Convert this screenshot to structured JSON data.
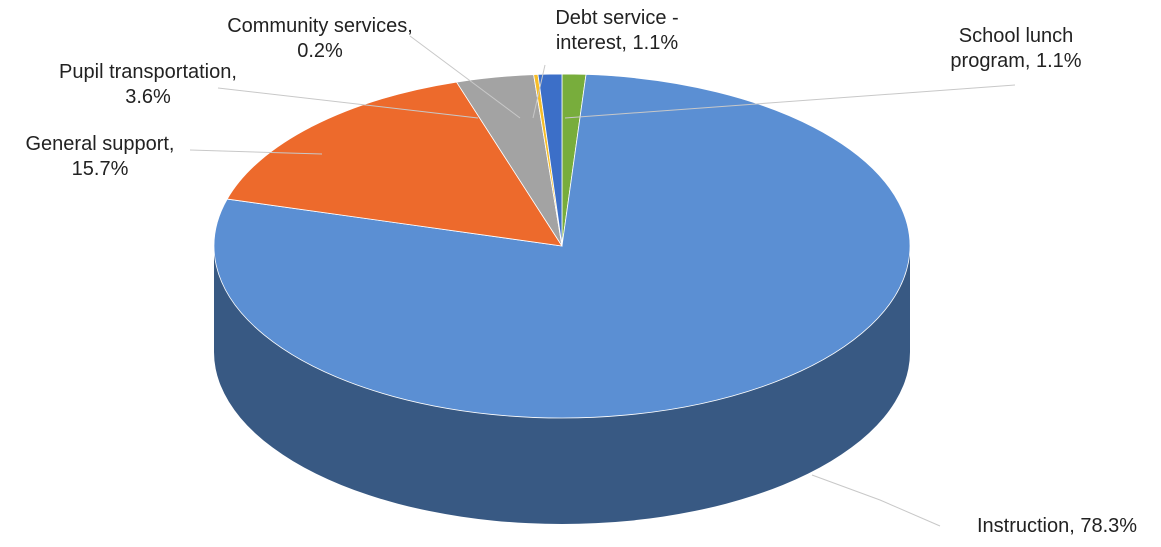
{
  "chart_data": {
    "type": "pie",
    "three_d": true,
    "title": "",
    "legend": "none",
    "slices": [
      {
        "label": "School lunch program",
        "value": 1.1,
        "label_lines": [
          "School lunch",
          "program, 1.1%"
        ],
        "color": "#78ad3c"
      },
      {
        "label": "Instruction",
        "value": 78.3,
        "label_lines": [
          "Instruction, 78.3%"
        ],
        "color": "#5b8fd3"
      },
      {
        "label": "General support",
        "value": 15.7,
        "label_lines": [
          "General support,",
          "15.7%"
        ],
        "color": "#ed6a2c"
      },
      {
        "label": "Pupil transportation",
        "value": 3.6,
        "label_lines": [
          "Pupil transportation,",
          "3.6%"
        ],
        "color": "#a3a3a3"
      },
      {
        "label": "Community services",
        "value": 0.2,
        "label_lines": [
          "Community services,",
          "0.2%"
        ],
        "color": "#f6bd28"
      },
      {
        "label": "Debt service - interest",
        "value": 1.1,
        "label_lines": [
          "Debt service -",
          "interest, 1.1%"
        ],
        "color": "#3c6fc8"
      }
    ]
  }
}
